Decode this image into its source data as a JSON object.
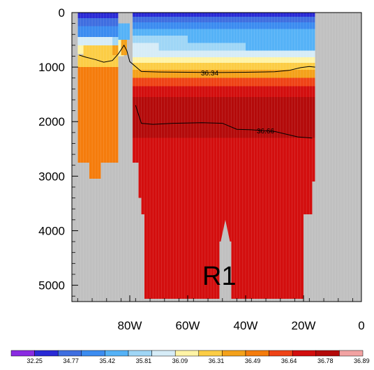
{
  "chart_data": {
    "type": "heatmap",
    "title": "",
    "xlabel": "",
    "ylabel": "",
    "x_ticks": [
      "80W",
      "60W",
      "40W",
      "20W",
      "0"
    ],
    "x_tick_values": [
      -80,
      -60,
      -40,
      -20,
      0
    ],
    "y_ticks": [
      "0",
      "1000",
      "2000",
      "3000",
      "4000",
      "5000"
    ],
    "y_tick_values": [
      0,
      1000,
      2000,
      3000,
      4000,
      5000
    ],
    "xlim": [
      -100,
      0
    ],
    "ylim": [
      5300,
      0
    ],
    "colorbar": {
      "labels": [
        "32.25",
        "34.77",
        "35.42",
        "35.81",
        "36.09",
        "36.31",
        "36.49",
        "36.64",
        "36.78",
        "36.89"
      ],
      "colors": [
        "#8a2be2",
        "#2a2ad6",
        "#3f6ee0",
        "#3c8cf0",
        "#55b2f7",
        "#9fd6f6",
        "#d6ecf7",
        "#fff4a6",
        "#fccd45",
        "#f4a11a",
        "#f57c0c",
        "#ef4316",
        "#d30e0e",
        "#b40a0a",
        "#f2a2a2"
      ]
    },
    "contours": [
      {
        "label": "36.34",
        "points": [
          [
            -97.5,
            780
          ],
          [
            -95,
            820
          ],
          [
            -92,
            860
          ],
          [
            -89,
            910
          ],
          [
            -86,
            880
          ],
          [
            -84,
            760
          ],
          [
            -82,
            600
          ],
          [
            -81,
            700
          ],
          [
            -80,
            900
          ],
          [
            -76,
            1080
          ],
          [
            -70,
            1090
          ],
          [
            -60,
            1095
          ],
          [
            -50,
            1100
          ],
          [
            -40,
            1095
          ],
          [
            -30,
            1085
          ],
          [
            -25,
            1060
          ],
          [
            -21,
            1010
          ],
          [
            -18,
            990
          ],
          [
            -16,
            1000
          ]
        ]
      },
      {
        "label": "36.66",
        "points": [
          [
            -78,
            1700
          ],
          [
            -76,
            2030
          ],
          [
            -72,
            2050
          ],
          [
            -65,
            2030
          ],
          [
            -55,
            2020
          ],
          [
            -48,
            2030
          ],
          [
            -43,
            2140
          ],
          [
            -38,
            2150
          ],
          [
            -30,
            2180
          ],
          [
            -22,
            2280
          ],
          [
            -17,
            2300
          ]
        ]
      }
    ],
    "region_label": "R1"
  }
}
